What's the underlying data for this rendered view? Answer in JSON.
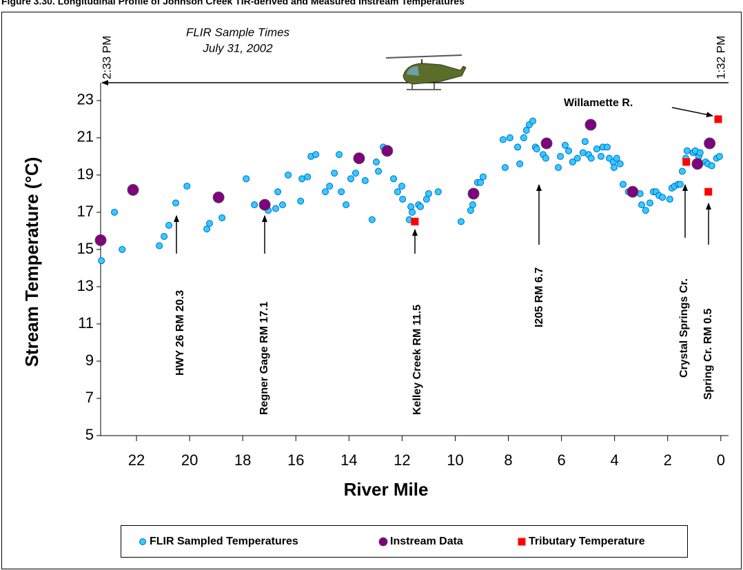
{
  "chart_data": {
    "type": "scatter",
    "title": "Figure 3.30.  Longitudinal Profile of Johnson Creek TIR-derived and Measured Instream Temperatures",
    "xlabel": "River Mile",
    "ylabel": "Stream Temperature (°C)",
    "note_title": "FLIR Sample Times",
    "note_date": "July 31, 2002",
    "start_time": "2:33 PM",
    "end_time": "1:32 PM",
    "annotations": [
      "HWY 26 RM 20.3",
      "Regner Gage RM 17.1",
      "Kelley Creek  RM 11.5",
      "I205 RM  6.7",
      "Crystal Springs Cr.",
      "Spring Cr. RM 0.5",
      "Willamette R."
    ],
    "xlim": [
      23.35,
      -0.29
    ],
    "xticks": [
      22,
      20,
      18,
      16,
      14,
      12,
      10,
      8,
      6,
      4,
      2,
      0
    ],
    "ylim": [
      5,
      23.96
    ],
    "yticks": [
      5,
      7,
      9,
      11,
      13,
      15,
      17,
      19,
      21,
      23
    ],
    "series": [
      {
        "name": "FLIR Sampled Temperatures",
        "color": "#33ccff",
        "edge": "#0066cc",
        "marker": "circle",
        "size": 4.5,
        "x": [
          23.32,
          22.83,
          22.54,
          21.14,
          20.96,
          20.78,
          20.52,
          20.1,
          19.35,
          19.25,
          18.78,
          17.87,
          17.56,
          17.04,
          16.76,
          16.68,
          16.5,
          16.29,
          15.82,
          15.77,
          15.56,
          15.43,
          15.25,
          14.89,
          14.73,
          14.55,
          14.37,
          14.29,
          14.11,
          13.93,
          13.75,
          13.39,
          13.13,
          12.97,
          12.89,
          12.71,
          12.32,
          12.17,
          12.01,
          11.98,
          11.73,
          11.67,
          11.62,
          11.38,
          11.31,
          11.08,
          11.0,
          10.64,
          9.78,
          9.42,
          9.34,
          9.23,
          9.16,
          9.05,
          8.95,
          8.2,
          8.12,
          7.94,
          7.65,
          7.57,
          7.42,
          7.32,
          7.21,
          7.08,
          6.98,
          6.93,
          6.69,
          6.59,
          6.12,
          6.04,
          5.86,
          5.73,
          5.58,
          5.4,
          5.19,
          5.11,
          4.98,
          4.88,
          4.67,
          4.51,
          4.44,
          4.28,
          4.2,
          4.05,
          4.02,
          3.92,
          3.79,
          3.68,
          3.48,
          3.04,
          2.98,
          2.83,
          2.67,
          2.54,
          2.44,
          2.33,
          2.2,
          1.92,
          1.84,
          1.74,
          1.61,
          1.53,
          1.45,
          1.32,
          1.27,
          1.04,
          0.96,
          0.83,
          0.78,
          0.57,
          0.49,
          0.34,
          0.16,
          0.05
        ],
        "values": [
          14.4,
          17.0,
          15.0,
          15.2,
          15.7,
          16.3,
          17.5,
          18.4,
          16.1,
          16.4,
          16.7,
          18.8,
          17.4,
          17.1,
          17.2,
          18.1,
          17.4,
          19.0,
          17.6,
          18.8,
          18.9,
          20.0,
          20.1,
          18.1,
          18.4,
          19.1,
          20.1,
          18.1,
          17.4,
          18.8,
          19.1,
          18.7,
          16.6,
          19.7,
          19.2,
          20.5,
          18.8,
          18.1,
          18.4,
          17.7,
          16.6,
          17.3,
          17.0,
          17.4,
          17.3,
          17.7,
          18.0,
          18.1,
          16.5,
          17.1,
          17.4,
          18.0,
          18.6,
          18.6,
          18.9,
          20.9,
          19.4,
          21.0,
          20.5,
          19.6,
          21.0,
          21.4,
          21.7,
          21.9,
          20.5,
          20.4,
          20.1,
          19.9,
          19.4,
          20.0,
          20.6,
          20.3,
          19.7,
          19.9,
          20.2,
          20.8,
          20.1,
          19.9,
          20.4,
          20.0,
          20.5,
          20.5,
          19.9,
          19.7,
          19.4,
          19.9,
          19.6,
          18.5,
          18.1,
          18.0,
          17.4,
          17.1,
          17.5,
          18.1,
          18.1,
          17.9,
          17.8,
          17.7,
          18.3,
          18.4,
          18.5,
          18.5,
          19.2,
          19.9,
          20.3,
          20.2,
          20.3,
          20.0,
          20.2,
          19.7,
          19.6,
          19.5,
          19.9,
          20.0
        ]
      },
      {
        "name": "Instream Data",
        "color": "#800080",
        "edge": "#555555",
        "marker": "circle",
        "size": 8,
        "x": [
          23.35,
          22.13,
          18.91,
          17.17,
          13.62,
          12.56,
          9.31,
          6.56,
          4.9,
          3.32,
          0.88,
          0.42
        ],
        "values": [
          15.5,
          18.2,
          17.8,
          17.4,
          19.9,
          20.3,
          18.0,
          20.7,
          21.7,
          18.1,
          19.6,
          20.7
        ]
      },
      {
        "name": "Tributary Temperature",
        "color": "#ff0000",
        "edge": "#ff0000",
        "marker": "square",
        "size": 5,
        "x": [
          11.52,
          1.3,
          0.47,
          0.1
        ],
        "values": [
          16.5,
          19.7,
          18.1,
          22.0
        ]
      }
    ]
  }
}
